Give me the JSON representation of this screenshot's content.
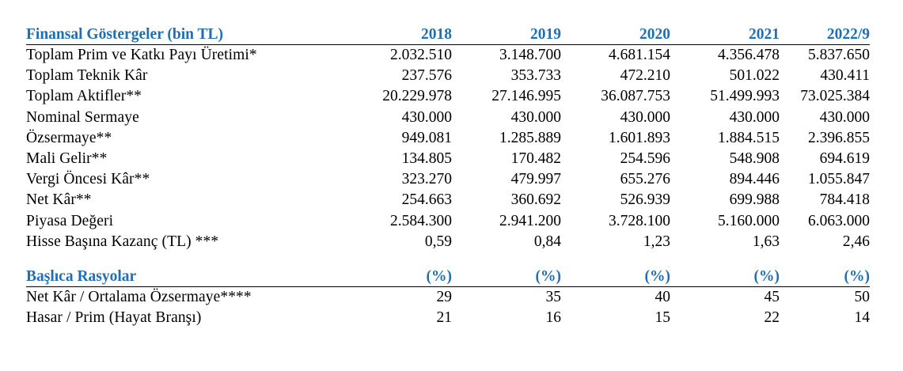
{
  "financial": {
    "title": "Finansal Göstergeler (bin TL)",
    "years": [
      "2018",
      "2019",
      "2020",
      "2021",
      "2022/9"
    ],
    "rows": [
      {
        "label": "Toplam Prim ve Katkı Payı Üretimi*",
        "values": [
          "2.032.510",
          "3.148.700",
          "4.681.154",
          "4.356.478",
          "5.837.650"
        ]
      },
      {
        "label": "Toplam Teknik Kâr",
        "values": [
          "237.576",
          "353.733",
          "472.210",
          "501.022",
          "430.411"
        ]
      },
      {
        "label": "Toplam Aktifler**",
        "values": [
          "20.229.978",
          "27.146.995",
          "36.087.753",
          "51.499.993",
          "73.025.384"
        ]
      },
      {
        "label": "Nominal Sermaye",
        "values": [
          "430.000",
          "430.000",
          "430.000",
          "430.000",
          "430.000"
        ]
      },
      {
        "label": "Özsermaye**",
        "values": [
          "949.081",
          "1.285.889",
          "1.601.893",
          "1.884.515",
          "2.396.855"
        ]
      },
      {
        "label": "Mali Gelir**",
        "values": [
          "134.805",
          "170.482",
          "254.596",
          "548.908",
          "694.619"
        ]
      },
      {
        "label": "Vergi Öncesi Kâr**",
        "values": [
          "323.270",
          "479.997",
          "655.276",
          "894.446",
          "1.055.847"
        ]
      },
      {
        "label": "Net Kâr**",
        "values": [
          "254.663",
          "360.692",
          "526.939",
          "699.988",
          "784.418"
        ]
      },
      {
        "label": "Piyasa Değeri",
        "values": [
          "2.584.300",
          "2.941.200",
          "3.728.100",
          "5.160.000",
          "6.063.000"
        ]
      },
      {
        "label": "Hisse Başına Kazanç (TL) ***",
        "values": [
          "0,59",
          "0,84",
          "1,23",
          "1,63",
          "2,46"
        ]
      }
    ]
  },
  "ratios": {
    "title": "Başlıca Rasyolar",
    "unit_labels": [
      "(%)",
      "(%)",
      "(%)",
      "(%)",
      "(%)"
    ],
    "rows": [
      {
        "label": "Net Kâr / Ortalama Özsermaye****",
        "values": [
          "29",
          "35",
          "40",
          "45",
          "50"
        ]
      },
      {
        "label": "Hasar / Prim (Hayat Branşı)",
        "values": [
          "21",
          "16",
          "15",
          "22",
          "14"
        ]
      }
    ],
    "accent_color": "#1f6fb5"
  }
}
